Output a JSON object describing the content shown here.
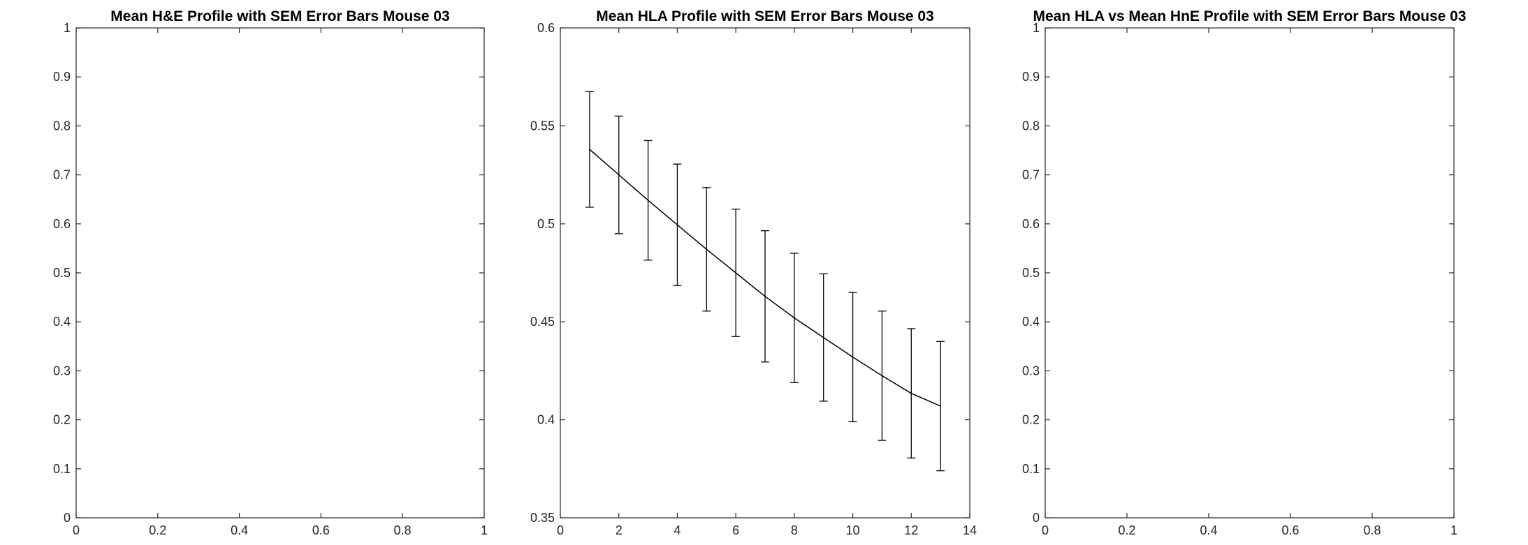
{
  "chart_data": [
    {
      "type": "line",
      "title": "Mean H&E Profile with SEM Error Bars Mouse 03",
      "xlabel": "",
      "ylabel": "",
      "xlim": [
        0,
        1
      ],
      "ylim": [
        0,
        1
      ],
      "xticks": [
        "0",
        "0.2",
        "0.4",
        "0.6",
        "0.8",
        "1"
      ],
      "yticks": [
        "0",
        "0.1",
        "0.2",
        "0.3",
        "0.4",
        "0.5",
        "0.6",
        "0.7",
        "0.8",
        "0.9",
        "1"
      ],
      "grid": false,
      "series": []
    },
    {
      "type": "line",
      "title": "Mean HLA Profile with SEM Error Bars Mouse 03",
      "xlabel": "",
      "ylabel": "",
      "xlim": [
        0,
        14
      ],
      "ylim": [
        0.35,
        0.6
      ],
      "xticks": [
        "0",
        "2",
        "4",
        "6",
        "8",
        "10",
        "12",
        "14"
      ],
      "yticks": [
        "0.35",
        "0.4",
        "0.45",
        "0.5",
        "0.55",
        "0.6"
      ],
      "grid": false,
      "series": [
        {
          "x": [
            1,
            2,
            3,
            4,
            5,
            6,
            7,
            8,
            9,
            10,
            11,
            12,
            13
          ],
          "y": [
            0.538,
            0.525,
            0.512,
            0.4995,
            0.487,
            0.475,
            0.463,
            0.452,
            0.442,
            0.432,
            0.4225,
            0.4135,
            0.407
          ],
          "err": [
            0.0295,
            0.03,
            0.0305,
            0.031,
            0.0315,
            0.0325,
            0.0335,
            0.033,
            0.0325,
            0.033,
            0.033,
            0.033,
            0.033
          ],
          "color": "#000000"
        }
      ]
    },
    {
      "type": "line",
      "title": "Mean HLA vs Mean HnE Profile with SEM Error Bars Mouse 03",
      "xlabel": "",
      "ylabel": "",
      "xlim": [
        0,
        1
      ],
      "ylim": [
        0,
        1
      ],
      "xticks": [
        "0",
        "0.2",
        "0.4",
        "0.6",
        "0.8",
        "1"
      ],
      "yticks": [
        "0",
        "0.1",
        "0.2",
        "0.3",
        "0.4",
        "0.5",
        "0.6",
        "0.7",
        "0.8",
        "0.9",
        "1"
      ],
      "grid": false,
      "series": []
    }
  ]
}
